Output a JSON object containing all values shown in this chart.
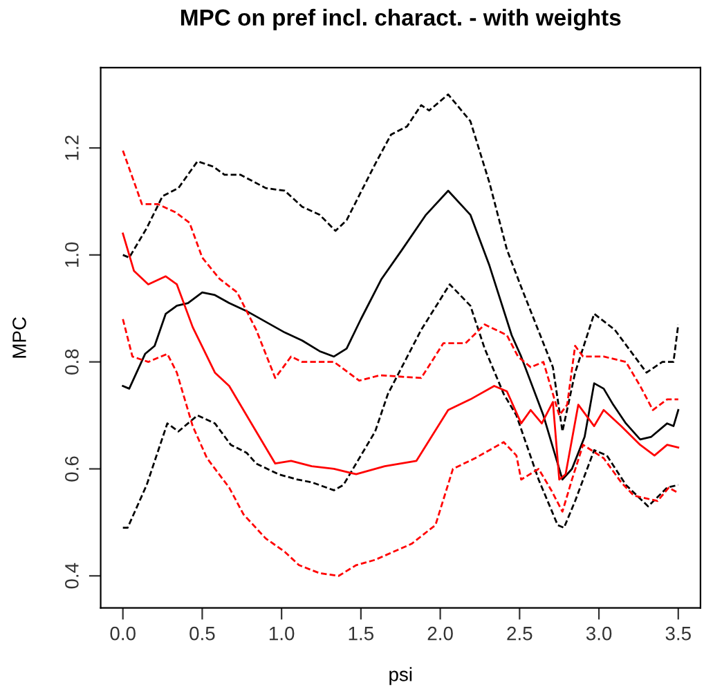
{
  "chart_data": {
    "type": "line",
    "title": "MPC on pref incl. charact. - with weights",
    "xlabel": "psi",
    "ylabel": "MPC",
    "xlim": [
      -0.14,
      3.64
    ],
    "ylim": [
      0.34,
      1.35
    ],
    "xticks": [
      {
        "value": 0.0,
        "label": "0.0"
      },
      {
        "value": 0.5,
        "label": "0.5"
      },
      {
        "value": 1.0,
        "label": "1.0"
      },
      {
        "value": 1.5,
        "label": "1.5"
      },
      {
        "value": 2.0,
        "label": "2.0"
      },
      {
        "value": 2.5,
        "label": "2.5"
      },
      {
        "value": 3.0,
        "label": "3.0"
      },
      {
        "value": 3.5,
        "label": "3.5"
      }
    ],
    "yticks": [
      {
        "value": 0.4,
        "label": "0.4"
      },
      {
        "value": 0.6,
        "label": "0.6"
      },
      {
        "value": 0.8,
        "label": "0.8"
      },
      {
        "value": 1.0,
        "label": "1.0"
      },
      {
        "value": 1.2,
        "label": "1.2"
      }
    ],
    "grid": false,
    "legend": false,
    "marker": "none",
    "series": [
      {
        "color": "#000000",
        "line_style": "solid",
        "x": [
          0.0,
          0.04,
          0.14,
          0.2,
          0.27,
          0.34,
          0.41,
          0.5,
          0.58,
          0.67,
          0.78,
          0.9,
          1.02,
          1.13,
          1.24,
          1.33,
          1.41,
          1.5,
          1.63,
          1.76,
          1.91,
          2.05,
          2.19,
          2.31,
          2.45,
          2.51,
          2.65,
          2.77,
          2.83,
          2.91,
          2.97,
          3.03,
          3.09,
          3.17,
          3.26,
          3.33,
          3.43,
          3.47,
          3.5
        ],
        "values": [
          0.755,
          0.75,
          0.815,
          0.83,
          0.89,
          0.905,
          0.91,
          0.93,
          0.925,
          0.91,
          0.895,
          0.875,
          0.855,
          0.84,
          0.82,
          0.81,
          0.825,
          0.88,
          0.955,
          1.01,
          1.075,
          1.12,
          1.075,
          0.98,
          0.85,
          0.81,
          0.7,
          0.58,
          0.6,
          0.66,
          0.76,
          0.75,
          0.72,
          0.685,
          0.655,
          0.66,
          0.685,
          0.68,
          0.71
        ]
      },
      {
        "color": "#000000",
        "line_style": "dashed",
        "x": [
          0.0,
          0.04,
          0.15,
          0.25,
          0.35,
          0.47,
          0.57,
          0.64,
          0.74,
          0.9,
          1.02,
          1.13,
          1.24,
          1.34,
          1.41,
          1.59,
          1.69,
          1.79,
          1.88,
          1.93,
          2.05,
          2.19,
          2.31,
          2.42,
          2.51,
          2.71,
          2.77,
          2.85,
          2.97,
          3.1,
          3.2,
          3.3,
          3.4,
          3.47,
          3.5
        ],
        "values": [
          1.0,
          0.995,
          1.05,
          1.11,
          1.125,
          1.175,
          1.165,
          1.15,
          1.15,
          1.125,
          1.12,
          1.09,
          1.075,
          1.045,
          1.065,
          1.17,
          1.225,
          1.24,
          1.28,
          1.27,
          1.3,
          1.25,
          1.135,
          1.01,
          0.94,
          0.79,
          0.67,
          0.78,
          0.89,
          0.86,
          0.82,
          0.78,
          0.8,
          0.8,
          0.87
        ]
      },
      {
        "color": "#000000",
        "line_style": "dashed",
        "x": [
          0.0,
          0.03,
          0.15,
          0.28,
          0.35,
          0.47,
          0.58,
          0.68,
          0.78,
          0.84,
          0.98,
          1.1,
          1.19,
          1.33,
          1.39,
          1.47,
          1.59,
          1.67,
          1.88,
          2.06,
          2.19,
          2.28,
          2.4,
          2.48,
          2.62,
          2.74,
          2.78,
          2.85,
          2.97,
          3.05,
          3.17,
          3.31,
          3.43,
          3.5
        ],
        "values": [
          0.49,
          0.49,
          0.57,
          0.685,
          0.67,
          0.7,
          0.685,
          0.645,
          0.63,
          0.61,
          0.59,
          0.58,
          0.575,
          0.56,
          0.57,
          0.61,
          0.67,
          0.74,
          0.86,
          0.945,
          0.905,
          0.825,
          0.74,
          0.7,
          0.58,
          0.495,
          0.49,
          0.54,
          0.635,
          0.625,
          0.57,
          0.53,
          0.565,
          0.57
        ]
      },
      {
        "color": "#ff0000",
        "line_style": "solid",
        "x": [
          0.0,
          0.07,
          0.16,
          0.27,
          0.34,
          0.44,
          0.58,
          0.67,
          0.81,
          0.96,
          1.06,
          1.19,
          1.33,
          1.47,
          1.65,
          1.85,
          2.05,
          2.19,
          2.34,
          2.42,
          2.51,
          2.57,
          2.64,
          2.71,
          2.75,
          2.79,
          2.87,
          2.97,
          3.03,
          3.14,
          3.26,
          3.35,
          3.43,
          3.5
        ],
        "values": [
          1.04,
          0.97,
          0.945,
          0.96,
          0.945,
          0.865,
          0.78,
          0.755,
          0.685,
          0.61,
          0.615,
          0.605,
          0.6,
          0.59,
          0.605,
          0.615,
          0.71,
          0.73,
          0.755,
          0.745,
          0.685,
          0.71,
          0.685,
          0.725,
          0.58,
          0.59,
          0.72,
          0.68,
          0.71,
          0.68,
          0.645,
          0.625,
          0.645,
          0.64
        ]
      },
      {
        "color": "#ff0000",
        "line_style": "dashed",
        "x": [
          0.0,
          0.12,
          0.22,
          0.33,
          0.42,
          0.5,
          0.61,
          0.72,
          0.84,
          0.96,
          1.06,
          1.13,
          1.33,
          1.49,
          1.62,
          1.88,
          2.02,
          2.16,
          2.28,
          2.42,
          2.49,
          2.57,
          2.65,
          2.75,
          2.8,
          2.85,
          2.9,
          3.03,
          3.17,
          3.26,
          3.34,
          3.43,
          3.5
        ],
        "values": [
          1.195,
          1.095,
          1.095,
          1.08,
          1.06,
          0.995,
          0.955,
          0.93,
          0.86,
          0.77,
          0.81,
          0.8,
          0.8,
          0.765,
          0.775,
          0.77,
          0.835,
          0.835,
          0.87,
          0.85,
          0.81,
          0.79,
          0.8,
          0.7,
          0.72,
          0.83,
          0.81,
          0.81,
          0.8,
          0.755,
          0.71,
          0.73,
          0.73
        ]
      },
      {
        "color": "#ff0000",
        "line_style": "dashed",
        "x": [
          0.0,
          0.06,
          0.16,
          0.28,
          0.34,
          0.44,
          0.53,
          0.67,
          0.76,
          0.9,
          1.02,
          1.11,
          1.24,
          1.36,
          1.47,
          1.59,
          1.82,
          1.97,
          2.08,
          2.22,
          2.4,
          2.48,
          2.51,
          2.62,
          2.7,
          2.77,
          2.83,
          2.9,
          3.03,
          3.14,
          3.22,
          3.37,
          3.44,
          3.5
        ],
        "values": [
          0.88,
          0.81,
          0.8,
          0.815,
          0.78,
          0.68,
          0.62,
          0.565,
          0.515,
          0.47,
          0.445,
          0.42,
          0.405,
          0.4,
          0.42,
          0.43,
          0.46,
          0.495,
          0.6,
          0.62,
          0.65,
          0.625,
          0.58,
          0.6,
          0.56,
          0.52,
          0.58,
          0.645,
          0.62,
          0.575,
          0.55,
          0.54,
          0.565,
          0.555
        ]
      }
    ]
  }
}
